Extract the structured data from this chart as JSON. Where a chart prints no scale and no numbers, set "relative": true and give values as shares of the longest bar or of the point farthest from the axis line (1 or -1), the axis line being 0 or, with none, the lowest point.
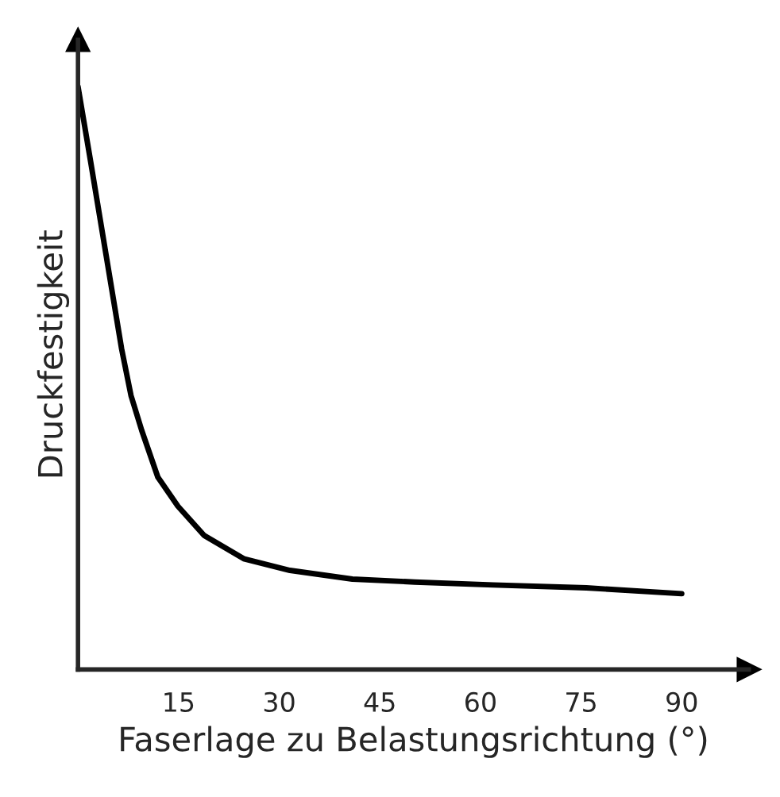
{
  "chart_data": {
    "type": "line",
    "xlabel": "Faserlage zu Belastungsrichtung (°)",
    "ylabel": "Druckfestigkeit",
    "relative": true,
    "xlim": [
      0,
      100
    ],
    "xticks": [
      15,
      30,
      45,
      60,
      75,
      90
    ],
    "grid": false,
    "marker": "none",
    "line_style": "solid",
    "series": [
      {
        "color": "#000000",
        "x": [
          0,
          1.9,
          4.2,
          6.5,
          7.9,
          9.5,
          11.9,
          14.9,
          18.8,
          24.7,
          31.6,
          40.9,
          50.2,
          61.9,
          75.8,
          90
        ],
        "values": [
          1.0,
          0.87,
          0.71,
          0.55,
          0.47,
          0.41,
          0.33,
          0.28,
          0.23,
          0.19,
          0.17,
          0.155,
          0.15,
          0.145,
          0.14,
          0.13
        ]
      }
    ]
  }
}
